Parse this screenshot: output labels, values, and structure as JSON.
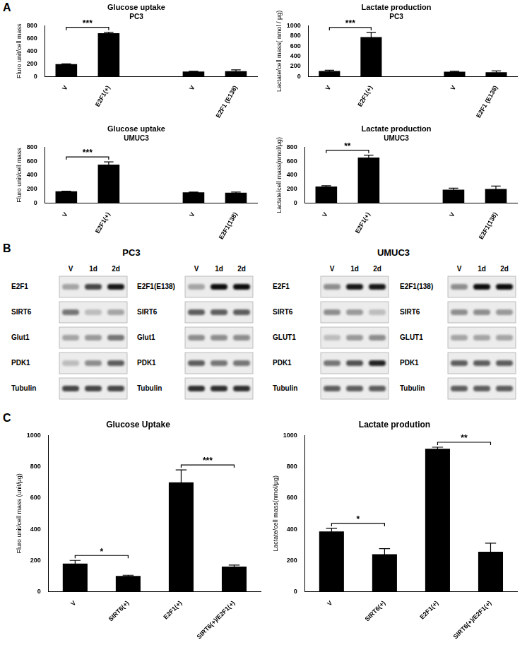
{
  "panel_labels": [
    "A",
    "B",
    "C"
  ],
  "chart_data": [
    {
      "type": "bar",
      "title": "Glucose uptake",
      "subtitle": "PC3",
      "y_label": "Fluro unit/cell mass",
      "categories": [
        "V",
        "E2F1(+)",
        null,
        "V",
        "E2F1 (E138)"
      ],
      "values": [
        195,
        680,
        null,
        80,
        85
      ],
      "errors": [
        5,
        15,
        null,
        5,
        20
      ],
      "color": "#000000",
      "ylim": [
        0,
        800
      ],
      "yticks": [
        0,
        200,
        400,
        600,
        800
      ],
      "grid": false,
      "annotations": [
        {
          "from": 0,
          "to": 1,
          "text": "***"
        }
      ]
    },
    {
      "type": "bar",
      "title": "Lactate production",
      "subtitle": "PC3",
      "y_label": "Lactate/cell mass( nmol / μg)",
      "categories": [
        "V",
        "E2F1(+)",
        null,
        "V",
        "E2F1 (E138)"
      ],
      "values": [
        110,
        775,
        null,
        95,
        85
      ],
      "errors": [
        15,
        90,
        null,
        10,
        25
      ],
      "color": "#000000",
      "ylim": [
        0,
        1000
      ],
      "yticks": [
        0,
        200,
        400,
        600,
        800,
        1000
      ],
      "grid": false,
      "annotations": [
        {
          "from": 0,
          "to": 1,
          "text": "***"
        }
      ]
    },
    {
      "type": "bar",
      "title": "Glucose uptake",
      "subtitle": "UMUC3",
      "y_label": "Fluro unit/cell mass",
      "categories": [
        "V",
        "E2F1(+)",
        null,
        "V",
        "E2F1(138)"
      ],
      "values": [
        170,
        550,
        null,
        155,
        150
      ],
      "errors": [
        3,
        40,
        null,
        5,
        10
      ],
      "color": "#000000",
      "ylim": [
        0,
        800
      ],
      "yticks": [
        0,
        200,
        400,
        600,
        800
      ],
      "grid": false,
      "annotations": [
        {
          "from": 0,
          "to": 1,
          "text": "***"
        }
      ]
    },
    {
      "type": "bar",
      "title": "Lactate production",
      "subtitle": "UMUC3",
      "y_label": "Lactate/cell mass(nmol/μg)",
      "categories": [
        "V",
        "E2F1(+)",
        null,
        "V",
        "E2F1(138)"
      ],
      "values": [
        240,
        650,
        null,
        195,
        205
      ],
      "errors": [
        10,
        35,
        null,
        20,
        40
      ],
      "color": "#000000",
      "ylim": [
        0,
        800
      ],
      "yticks": [
        0,
        200,
        400,
        600,
        800
      ],
      "grid": false,
      "annotations": [
        {
          "from": 0,
          "to": 1,
          "text": "**"
        }
      ]
    },
    {
      "type": "bar",
      "title": "Glucose Uptake",
      "y_label": "Fluro unit/cell mass (unit/μg)",
      "categories": [
        "V",
        "SIRT6(+)",
        "E2F1(+)",
        "SIRT6(+)/E2F1(+)"
      ],
      "values": [
        180,
        100,
        700,
        160
      ],
      "errors": [
        20,
        5,
        80,
        10
      ],
      "color": "#000000",
      "ylim": [
        0,
        1000
      ],
      "yticks": [
        0,
        200,
        400,
        600,
        800,
        1000
      ],
      "grid": false,
      "annotations": [
        {
          "from": 0,
          "to": 1,
          "text": "*"
        },
        {
          "from": 2,
          "to": 3,
          "text": "***"
        }
      ]
    },
    {
      "type": "bar",
      "title": "Lactate prodution",
      "y_label": "Lactate/cell mass(nmol/μg)",
      "categories": [
        "V",
        "SIRT6(+)",
        "E2F1(+)",
        "SIRT6(+)/E2F1(+)"
      ],
      "values": [
        385,
        240,
        915,
        255
      ],
      "errors": [
        20,
        35,
        10,
        55
      ],
      "color": "#000000",
      "ylim": [
        0,
        1000
      ],
      "yticks": [
        0,
        200,
        400,
        600,
        800,
        1000
      ],
      "grid": false,
      "annotations": [
        {
          "from": 0,
          "to": 1,
          "text": "*"
        },
        {
          "from": 2,
          "to": 3,
          "text": "**"
        }
      ]
    }
  ],
  "blots": [
    {
      "title": "PC3",
      "gels": [
        {
          "lanes": [
            "V",
            "1d",
            "2d"
          ],
          "rows": [
            {
              "label": "E2F1",
              "intensity": [
                0.3,
                0.7,
                0.9
              ]
            },
            {
              "label": "SIRT6",
              "intensity": [
                0.5,
                0.2,
                0.3
              ]
            },
            {
              "label": "Glut1",
              "intensity": [
                0.3,
                0.35,
                0.5
              ]
            },
            {
              "label": "PDK1",
              "intensity": [
                0.2,
                0.4,
                0.6
              ]
            },
            {
              "label": "Tubulin",
              "intensity": [
                0.7,
                0.7,
                0.7
              ]
            }
          ]
        },
        {
          "lanes": [
            "V",
            "1d",
            "2d"
          ],
          "rows": [
            {
              "label": "E2F1(E138)",
              "intensity": [
                0.3,
                0.95,
                0.95
              ]
            },
            {
              "label": "SIRT6",
              "intensity": [
                0.6,
                0.6,
                0.6
              ]
            },
            {
              "label": "Glut1",
              "intensity": [
                0.4,
                0.4,
                0.4
              ]
            },
            {
              "label": "PDK1",
              "intensity": [
                0.6,
                0.5,
                0.5
              ]
            },
            {
              "label": "Tubulin",
              "intensity": [
                0.8,
                0.8,
                0.8
              ]
            }
          ]
        }
      ]
    },
    {
      "title": "UMUC3",
      "gels": [
        {
          "lanes": [
            "V",
            "1d",
            "2d"
          ],
          "rows": [
            {
              "label": "E2F1",
              "intensity": [
                0.4,
                0.9,
                0.9
              ]
            },
            {
              "label": "SIRT6",
              "intensity": [
                0.4,
                0.35,
                0.2
              ]
            },
            {
              "label": "GLUT1",
              "intensity": [
                0.2,
                0.35,
                0.4
              ]
            },
            {
              "label": "PDK1",
              "intensity": [
                0.5,
                0.65,
                0.85
              ]
            },
            {
              "label": "Tubulin",
              "intensity": [
                0.6,
                0.6,
                0.6
              ]
            }
          ]
        },
        {
          "lanes": [
            "V",
            "1d",
            "2d"
          ],
          "rows": [
            {
              "label": "E2F1(138)",
              "intensity": [
                0.4,
                0.95,
                0.95
              ]
            },
            {
              "label": "SIRT6",
              "intensity": [
                0.4,
                0.4,
                0.35
              ]
            },
            {
              "label": "GLUT1",
              "intensity": [
                0.3,
                0.3,
                0.3
              ]
            },
            {
              "label": "PDK1",
              "intensity": [
                0.6,
                0.6,
                0.6
              ]
            },
            {
              "label": "Tubulin",
              "intensity": [
                0.6,
                0.6,
                0.6
              ]
            }
          ]
        }
      ]
    }
  ]
}
